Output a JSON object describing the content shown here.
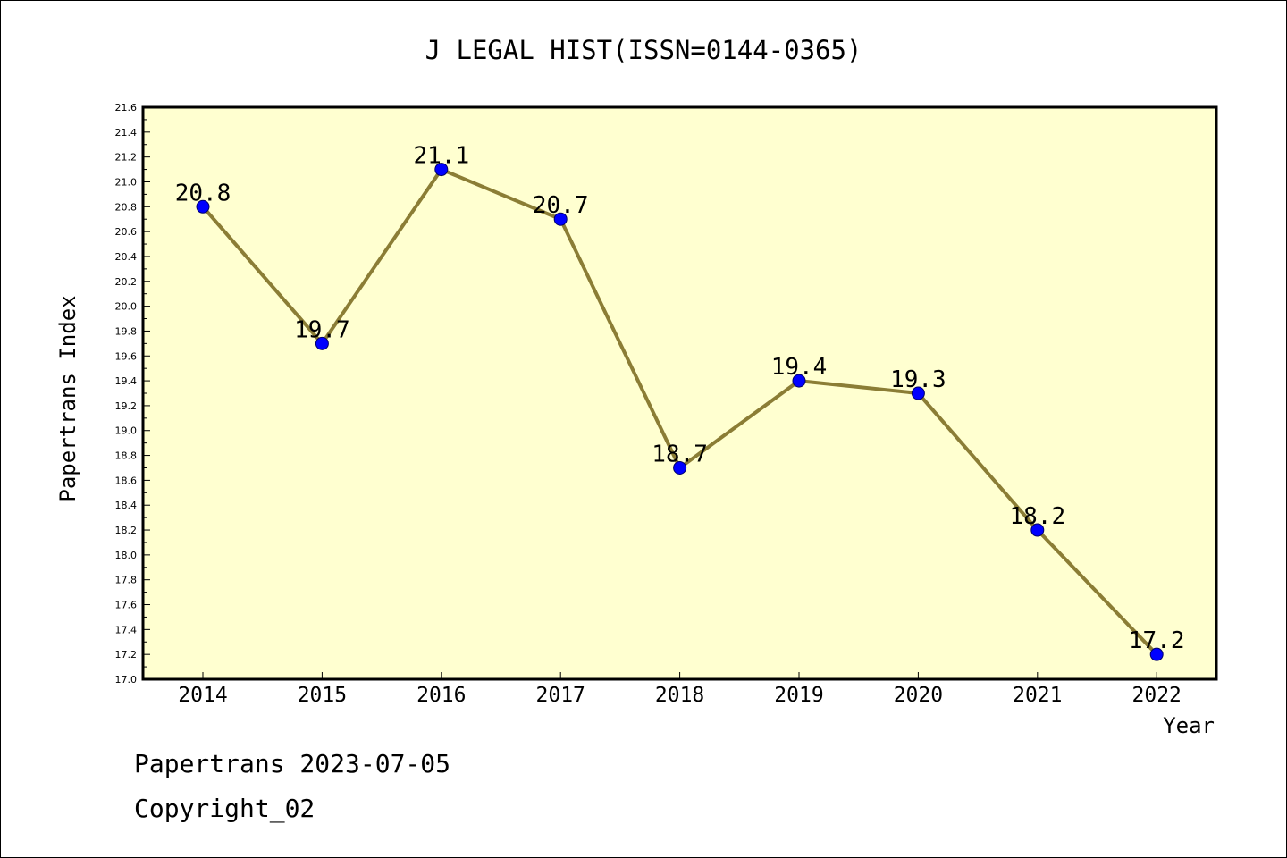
{
  "chart_data": {
    "type": "line",
    "title": "J LEGAL HIST(ISSN=0144-0365)",
    "xlabel": "Year",
    "ylabel": "Papertrans Index",
    "categories": [
      "2014",
      "2015",
      "2016",
      "2017",
      "2018",
      "2019",
      "2020",
      "2021",
      "2022"
    ],
    "series": [
      {
        "values": [
          20.8,
          19.7,
          21.1,
          20.7,
          18.7,
          19.4,
          19.3,
          18.2,
          17.2
        ],
        "labels": [
          "20.8",
          "19.7",
          "21.1",
          "20.7",
          "18.7",
          "19.4",
          "19.3",
          "18.2",
          "17.2"
        ],
        "line_color": "#8b7d35",
        "marker_color": "#0000ff"
      }
    ],
    "ylim": [
      17.0,
      21.6
    ],
    "yticks": [
      "17.0",
      "17.2",
      "17.4",
      "17.6",
      "17.8",
      "18.0",
      "18.2",
      "18.4",
      "18.6",
      "18.8",
      "19.0",
      "19.2",
      "19.4",
      "19.6",
      "19.8",
      "20.0",
      "20.2",
      "20.4",
      "20.6",
      "20.8",
      "21.0",
      "21.2",
      "21.4",
      "21.6"
    ],
    "plot_background": "#ffffd0",
    "grid": false,
    "legend": "none"
  },
  "footer": {
    "line1": "Papertrans 2023-07-05",
    "line2": "Copyright_02"
  }
}
